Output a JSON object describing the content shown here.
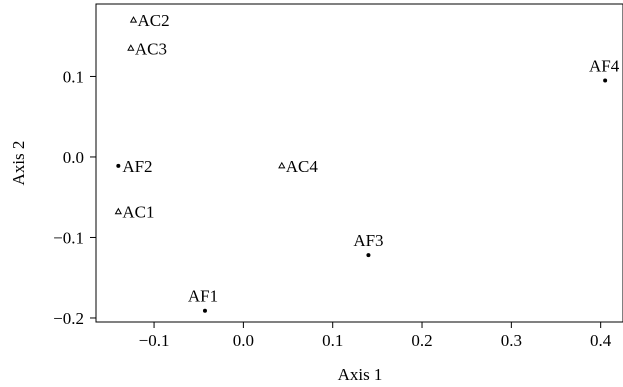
{
  "chart_data": {
    "type": "scatter",
    "title": "",
    "xlabel": "Axis 1",
    "ylabel": "Axis 2",
    "xlim": [
      -0.165,
      0.425
    ],
    "ylim": [
      -0.205,
      0.19
    ],
    "xticks": [
      -0.1,
      0.0,
      0.1,
      0.2,
      0.3,
      0.4
    ],
    "xtick_labels": [
      "−0.1",
      "0.0",
      "0.1",
      "0.2",
      "0.3",
      "0.4"
    ],
    "yticks": [
      -0.2,
      -0.1,
      0.0,
      0.1
    ],
    "ytick_labels": [
      "−0.2",
      "−0.1",
      "0.0",
      "0.1"
    ],
    "grid": false,
    "legend": "none",
    "series": [
      {
        "marker": "triangle",
        "points": [
          {
            "label": "AC2",
            "x": -0.123,
            "y": 0.17
          },
          {
            "label": "AC3",
            "x": -0.126,
            "y": 0.135
          },
          {
            "label": "AC4",
            "x": 0.043,
            "y": -0.011
          },
          {
            "label": "AC1",
            "x": -0.14,
            "y": -0.068
          }
        ]
      },
      {
        "marker": "dot",
        "points": [
          {
            "label": "AF4",
            "x": 0.405,
            "y": 0.095
          },
          {
            "label": "AF2",
            "x": -0.14,
            "y": -0.011
          },
          {
            "label": "AF3",
            "x": 0.14,
            "y": -0.122
          },
          {
            "label": "AF1",
            "x": -0.043,
            "y": -0.191
          }
        ]
      }
    ]
  }
}
